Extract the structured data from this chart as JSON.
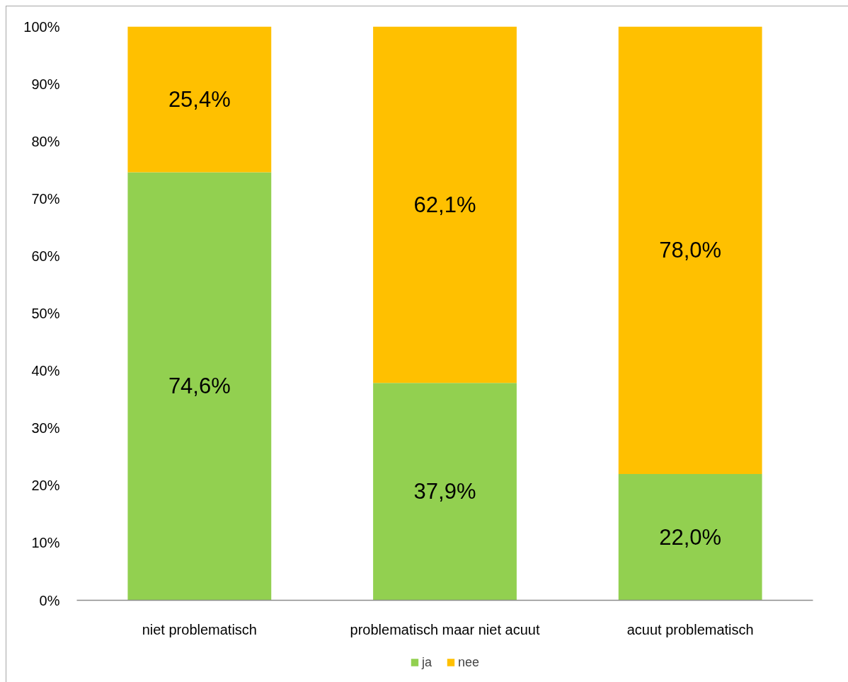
{
  "chart_data": {
    "type": "bar",
    "stacked": true,
    "grid": false,
    "legend": "bottom",
    "categories": [
      "niet problematisch",
      "problematisch maar niet acuut",
      "acuut problematisch"
    ],
    "series": [
      {
        "name": "ja",
        "color": "#92d050",
        "values": [
          74.6,
          37.9,
          22.0
        ],
        "value_labels": [
          "74,6%",
          "37,9%",
          "22,0%"
        ]
      },
      {
        "name": "nee",
        "color": "#ffc000",
        "values": [
          25.4,
          62.1,
          78.0
        ],
        "value_labels": [
          "25,4%",
          "62,1%",
          "78,0%"
        ]
      }
    ],
    "ylim": [
      0,
      100
    ],
    "yticks": [
      {
        "value": 0,
        "label": "0%"
      },
      {
        "value": 10,
        "label": "10%"
      },
      {
        "value": 20,
        "label": "20%"
      },
      {
        "value": 30,
        "label": "30%"
      },
      {
        "value": 40,
        "label": "40%"
      },
      {
        "value": 50,
        "label": "50%"
      },
      {
        "value": 60,
        "label": "60%"
      },
      {
        "value": 70,
        "label": "70%"
      },
      {
        "value": 80,
        "label": "80%"
      },
      {
        "value": 90,
        "label": "90%"
      },
      {
        "value": 100,
        "label": "100%"
      }
    ]
  }
}
